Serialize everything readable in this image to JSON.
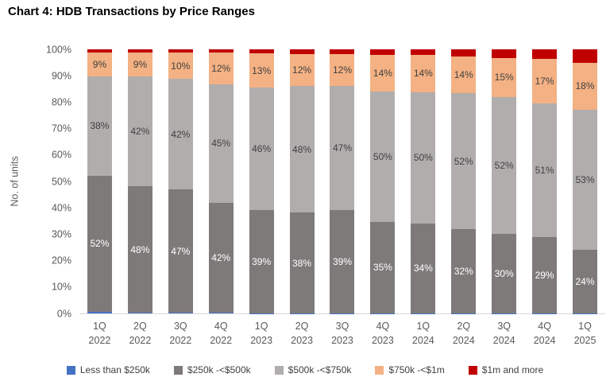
{
  "title": "Chart 4: HDB Transactions by Price Ranges",
  "chart_data": {
    "type": "bar",
    "stacked": true,
    "title": "Chart 4: HDB Transactions by Price Ranges",
    "xlabel": "",
    "ylabel": "No. of units",
    "ylim": [
      0,
      100
    ],
    "y_ticks": [
      "0%",
      "10%",
      "20%",
      "30%",
      "40%",
      "50%",
      "60%",
      "70%",
      "80%",
      "90%",
      "100%"
    ],
    "grid": false,
    "legend_position": "bottom",
    "axis_text_color": "#595959",
    "baseline_color": "#d9d9d9",
    "categories": [
      {
        "quarter": "1Q",
        "year": "2022"
      },
      {
        "quarter": "2Q",
        "year": "2022"
      },
      {
        "quarter": "3Q",
        "year": "2022"
      },
      {
        "quarter": "4Q",
        "year": "2022"
      },
      {
        "quarter": "1Q",
        "year": "2023"
      },
      {
        "quarter": "2Q",
        "year": "2023"
      },
      {
        "quarter": "3Q",
        "year": "2023"
      },
      {
        "quarter": "4Q",
        "year": "2023"
      },
      {
        "quarter": "1Q",
        "year": "2024"
      },
      {
        "quarter": "2Q",
        "year": "2024"
      },
      {
        "quarter": "3Q",
        "year": "2024"
      },
      {
        "quarter": "4Q",
        "year": "2024"
      },
      {
        "quarter": "1Q",
        "year": "2025"
      }
    ],
    "series": [
      {
        "name": "Less than $250k",
        "color": "#4472c4",
        "label_color": "#ffffff",
        "values": [
          0.6,
          0.3,
          0.2,
          0.2,
          0.1,
          0.1,
          0.1,
          0.1,
          0.1,
          0.1,
          0.1,
          0.1,
          0.1
        ],
        "labels": null
      },
      {
        "name": "$250k -<$500k",
        "color": "#7e7a7a",
        "label_color": "#ffffff",
        "values": [
          52,
          48,
          47,
          42,
          39,
          38,
          39,
          35,
          34,
          32,
          30,
          29,
          24
        ],
        "labels": [
          "52%",
          "48%",
          "47%",
          "42%",
          "39%",
          "38%",
          "39%",
          "35%",
          "34%",
          "32%",
          "30%",
          "29%",
          "24%"
        ]
      },
      {
        "name": "$500k -<$750k",
        "color": "#b1adad",
        "label_color": "#404040",
        "values": [
          38,
          42,
          42,
          45,
          46,
          48,
          47,
          50,
          50,
          52,
          52,
          51,
          53
        ],
        "labels": [
          "38%",
          "42%",
          "42%",
          "45%",
          "46%",
          "48%",
          "47%",
          "50%",
          "50%",
          "52%",
          "52%",
          "51%",
          "53%"
        ]
      },
      {
        "name": "$750k -<$1m",
        "color": "#f4b183",
        "label_color": "#404040",
        "values": [
          9,
          9,
          10,
          12,
          13,
          12,
          12,
          14,
          14,
          14,
          15,
          17,
          18
        ],
        "labels": [
          "9%",
          "9%",
          "10%",
          "12%",
          "13%",
          "12%",
          "12%",
          "14%",
          "14%",
          "14%",
          "15%",
          "17%",
          "18%"
        ]
      },
      {
        "name": "$1m and more",
        "color": "#c00000",
        "label_color": "#ffffff",
        "values": [
          1.2,
          1.2,
          1.3,
          1.3,
          1.5,
          1.8,
          1.8,
          2,
          2.2,
          2.8,
          3.2,
          3.5,
          5
        ],
        "labels": null
      }
    ]
  }
}
